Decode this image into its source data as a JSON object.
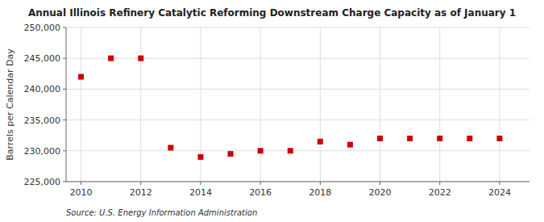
{
  "chart_data": {
    "type": "scatter",
    "title": "Annual Illinois Refinery Catalytic Reforming Downstream Charge Capacity as of January 1",
    "y_label": "Barrels per Calendar Day",
    "source": "Source: U.S. Energy Information Administration",
    "x": [
      2010,
      2011,
      2012,
      2013,
      2014,
      2015,
      2016,
      2017,
      2018,
      2019,
      2020,
      2021,
      2022,
      2023,
      2024
    ],
    "values": [
      242000,
      245000,
      245000,
      230500,
      229000,
      229500,
      230000,
      230000,
      231500,
      231000,
      232000,
      232000,
      232000,
      232000,
      232000
    ],
    "color": "#cc0000",
    "marker": "square",
    "xlim": [
      2009.5,
      2025.0
    ],
    "xticks": [
      2010,
      2012,
      2014,
      2016,
      2018,
      2020,
      2022,
      2024
    ],
    "ylim": [
      225000,
      250000
    ],
    "yticks": [
      {
        "value": 225000,
        "label": "225,000"
      },
      {
        "value": 230000,
        "label": "230,000"
      },
      {
        "value": 235000,
        "label": "235,000"
      },
      {
        "value": 240000,
        "label": "240,000"
      },
      {
        "value": 245000,
        "label": "245,000"
      },
      {
        "value": 250000,
        "label": "250,000"
      }
    ],
    "grid": true
  }
}
